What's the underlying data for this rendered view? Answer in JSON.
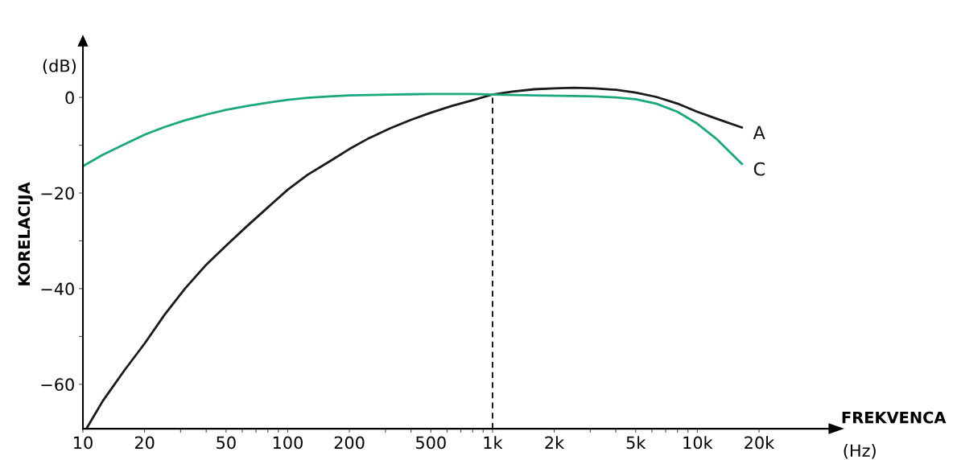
{
  "chart_data": {
    "type": "line",
    "xlabel": "FREKVENCA",
    "ylabel": "KORELACIJA",
    "annotations": [
      "(dB)",
      "(Hz)"
    ],
    "log": "x",
    "grid": false,
    "legend": false,
    "marker": "none",
    "line_style": "solid",
    "xlim": [
      10,
      44000
    ],
    "ylim": [
      -69.3,
      12
    ],
    "xticks": [
      10,
      20,
      {
        "value": 30,
        "label": null
      },
      {
        "value": 40,
        "label": null
      },
      50,
      {
        "value": 60,
        "label": null
      },
      {
        "value": 70,
        "label": null
      },
      {
        "value": 80,
        "label": null
      },
      {
        "value": 90,
        "label": null
      },
      100,
      200,
      {
        "value": 300,
        "label": null
      },
      {
        "value": 400,
        "label": null
      },
      500,
      {
        "value": 600,
        "label": null
      },
      {
        "value": 700,
        "label": null
      },
      {
        "value": 800,
        "label": null
      },
      {
        "value": 900,
        "label": null
      },
      {
        "value": 1000,
        "label": "1k"
      },
      {
        "value": 2000,
        "label": "2k"
      },
      {
        "value": 3000,
        "label": null
      },
      {
        "value": 4000,
        "label": null
      },
      {
        "value": 5000,
        "label": "5k"
      },
      {
        "value": 6000,
        "label": null
      },
      {
        "value": 7000,
        "label": null
      },
      {
        "value": 8000,
        "label": null
      },
      {
        "value": 9000,
        "label": null
      },
      {
        "value": 10000,
        "label": "10k"
      },
      {
        "value": 20000,
        "label": "20k"
      }
    ],
    "yticks": [
      {
        "value": -60,
        "label": "−60"
      },
      {
        "value": -50,
        "label": null
      },
      {
        "value": -40,
        "label": "−40"
      },
      {
        "value": -30,
        "label": null
      },
      {
        "value": -20,
        "label": "−20"
      },
      {
        "value": -10,
        "label": null
      },
      0
    ],
    "ref_lines": [
      {
        "axis": "x",
        "value": 1000,
        "color": "#000000",
        "line_style": "dashed"
      }
    ],
    "series": [
      {
        "name": "A",
        "color": "#1a1a1a",
        "x": [
          10.5,
          12.5,
          16,
          20,
          25,
          31.5,
          40,
          50,
          63,
          80,
          100,
          125,
          160,
          200,
          250,
          315,
          400,
          500,
          630,
          800,
          1000,
          1250,
          1600,
          2000,
          2500,
          3150,
          4000,
          5000,
          6300,
          8000,
          10000,
          12500,
          16500
        ],
        "values": [
          -69,
          -63.5,
          -57,
          -51.5,
          -45.5,
          -40,
          -35,
          -31,
          -27,
          -23,
          -19.3,
          -16.2,
          -13.4,
          -10.8,
          -8.5,
          -6.5,
          -4.7,
          -3.2,
          -1.8,
          -0.6,
          0.6,
          1.2,
          1.7,
          1.9,
          2,
          1.9,
          1.6,
          1,
          0.1,
          -1.3,
          -3,
          -4.5,
          -6.3
        ]
      },
      {
        "name": "C",
        "color": "#1aa97f",
        "x": [
          10,
          12.5,
          16,
          20,
          25,
          31.5,
          40,
          50,
          63,
          80,
          100,
          125,
          160,
          200,
          315,
          500,
          800,
          1000,
          1600,
          2500,
          3150,
          4000,
          5000,
          6300,
          8000,
          10000,
          12500,
          16500
        ],
        "values": [
          -14.4,
          -12,
          -9.8,
          -7.8,
          -6.2,
          -4.8,
          -3.6,
          -2.6,
          -1.8,
          -1.1,
          -0.5,
          -0.1,
          0.2,
          0.4,
          0.6,
          0.7,
          0.7,
          0.6,
          0.4,
          0.3,
          0.2,
          0,
          -0.4,
          -1.3,
          -3,
          -5.5,
          -8.8,
          -13.9
        ]
      }
    ]
  }
}
